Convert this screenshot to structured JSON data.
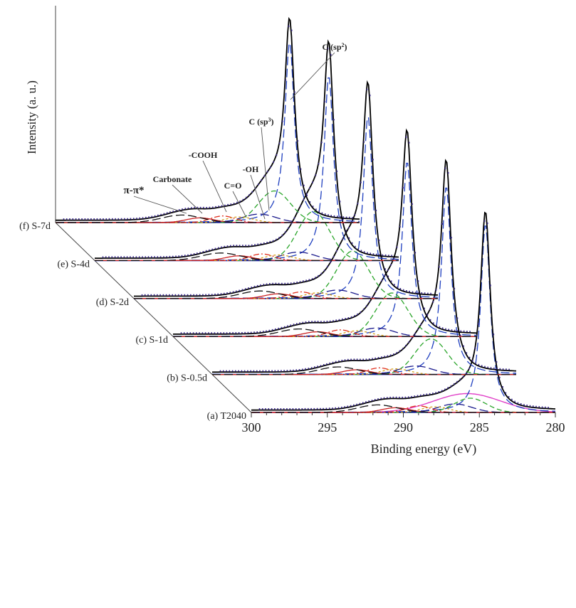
{
  "chart_data": {
    "type": "line",
    "subtype": "stacked-3d-waterfall",
    "title": "",
    "xlabel": "Binding energy (eV)",
    "ylabel": "Intensity (a. u.)",
    "xlim": [
      300,
      280
    ],
    "x_ticks": [
      "300",
      "295",
      "290",
      "285",
      "280"
    ],
    "tick_values": [
      300,
      295,
      290,
      285,
      280
    ],
    "samples": [
      {
        "id": "a",
        "label": "(a) T2040",
        "sp2_peak_height": 1.0,
        "sp3_area": 0.18
      },
      {
        "id": "b",
        "label": "(b) S-0.5d",
        "sp2_peak_height": 1.0,
        "sp3_area": 0.45
      },
      {
        "id": "c",
        "label": "(c) S-1d",
        "sp2_peak_height": 0.93,
        "sp3_area": 0.55
      },
      {
        "id": "d",
        "label": "(d) S-2d",
        "sp2_peak_height": 0.97,
        "sp3_area": 0.6
      },
      {
        "id": "e",
        "label": "(e) S-4d",
        "sp2_peak_height": 0.98,
        "sp3_area": 0.62
      },
      {
        "id": "f",
        "label": "(f) S-7d",
        "sp2_peak_height": 0.96,
        "sp3_area": 0.4
      }
    ],
    "components": [
      {
        "name": "C (sp2)",
        "center": 284.6,
        "color": "#1f3fbf",
        "dash": "long"
      },
      {
        "name": "C (sp3)",
        "center": 285.5,
        "color": "#2aa52a",
        "dash": "medium"
      },
      {
        "name": "-OH",
        "center": 286.5,
        "color": "#1a1a8c",
        "dash": "long"
      },
      {
        "name": "C=O",
        "center": 287.8,
        "color": "#d4a017",
        "dash": "short"
      },
      {
        "name": "-COOH",
        "center": 289.0,
        "color": "#e0301e",
        "dash": "dashdot"
      },
      {
        "name": "Carbonate",
        "center": 290.4,
        "color": "#cc2222",
        "dash": "solid"
      },
      {
        "name": "π-π*",
        "center": 291.5,
        "color": "#111111",
        "dash": "long"
      }
    ],
    "annotations": [
      {
        "text": "C (sp",
        "sup": "2",
        "suffix": ")",
        "target": "C (sp2)"
      },
      {
        "text": "C (sp",
        "sup": "3",
        "suffix": ")",
        "target": "C (sp3)"
      },
      {
        "text": "-OH",
        "target": "-OH"
      },
      {
        "text": "C=O",
        "target": "C=O"
      },
      {
        "text": "-COOH",
        "target": "-COOH"
      },
      {
        "text": "Carbonate",
        "target": "Carbonate"
      },
      {
        "text": "π-π*",
        "target": "π-π*"
      }
    ],
    "colors": {
      "envelope": "#000000",
      "data_points": "#3a2a8a",
      "baseline": "#1f1fa6",
      "background": "#e040c8"
    }
  }
}
